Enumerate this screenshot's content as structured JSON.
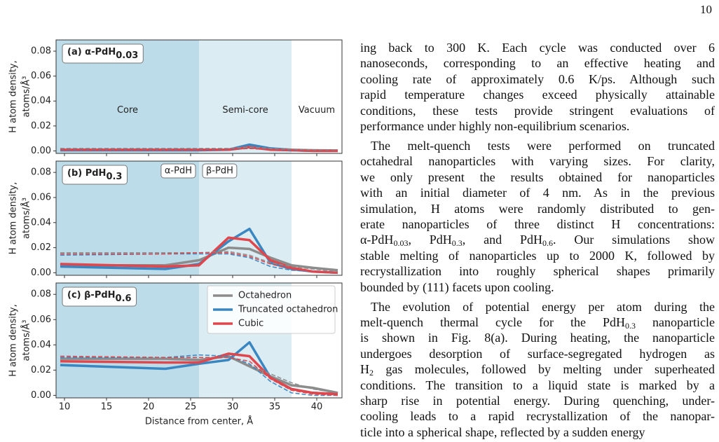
{
  "page_number": "10",
  "chart_data": [
    {
      "type": "line",
      "title": "(a) α-PdH",
      "title_sub": "0.03",
      "x": [
        9.5,
        22,
        26,
        29.5,
        32,
        34.5,
        37,
        39.5,
        42.5
      ],
      "xlim": [
        9,
        43
      ],
      "xticks": [
        10,
        15,
        20,
        25,
        30,
        35,
        40
      ],
      "xtick_labels": false,
      "ylim": [
        -0.002,
        0.089
      ],
      "yticks": [
        {
          "value": 0,
          "label": "0.00"
        },
        0.02,
        0.04,
        0.06,
        0.08
      ],
      "ylabel": [
        "H atom density,",
        "atoms/Å³"
      ],
      "regions": [
        {
          "from": 9,
          "to": 26,
          "color": "#bcdce9",
          "label": "Core"
        },
        {
          "from": 26,
          "to": 37,
          "color": "#dbedf3",
          "label": "Semi-core"
        },
        {
          "from": 37,
          "to": 43,
          "color": "#ffffff",
          "label": "Vacuum"
        }
      ],
      "region_label_style": "centered",
      "series": [
        {
          "color": "#8c8c8c",
          "values": [
            0.001,
            0.001,
            0.001,
            0.001,
            0.003,
            0.002,
            0.001,
            0.0005,
            0.0003
          ]
        },
        {
          "color": "#3a86c0",
          "values": [
            0.0005,
            0.0005,
            0.0005,
            0.001,
            0.005,
            0.002,
            0.0005,
            0,
            0
          ]
        },
        {
          "color": "#e0474c",
          "values": [
            0.001,
            0.001,
            0.001,
            0.001,
            0.003,
            0.001,
            0.0005,
            0,
            0
          ]
        },
        {
          "color": "#8c8c8c",
          "dashed": true,
          "values": [
            0.002,
            0.002,
            0.002,
            0.002,
            0.003,
            0.002,
            0.001,
            0.0005,
            0.0003
          ]
        },
        {
          "color": "#3a86c0",
          "dashed": true,
          "values": [
            0.001,
            0.001,
            0.001,
            0.001,
            0.002,
            0.001,
            0,
            0,
            0
          ]
        },
        {
          "color": "#e0474c",
          "dashed": true,
          "values": [
            0.0015,
            0.0015,
            0.0015,
            0.0015,
            0.002,
            0.001,
            0.0005,
            0,
            0
          ]
        }
      ]
    },
    {
      "type": "line",
      "title": "(b) PdH",
      "title_sub": "0.3",
      "x": [
        9.5,
        22,
        26,
        29.5,
        32,
        34.5,
        37,
        39.5,
        42.5
      ],
      "xlim": [
        9,
        43
      ],
      "xticks": [
        10,
        15,
        20,
        25,
        30,
        35,
        40
      ],
      "xtick_labels": false,
      "ylim": [
        -0.002,
        0.089
      ],
      "yticks": [
        {
          "value": 0,
          "label": "0.00"
        },
        0.02,
        0.04,
        0.06,
        0.08
      ],
      "ylabel": [
        "H atom density,",
        "atoms/Å³"
      ],
      "regions": [
        {
          "from": 9,
          "to": 26,
          "color": "#bcdce9",
          "label": "α-PdH"
        },
        {
          "from": 26,
          "to": 37,
          "color": "#dbedf3",
          "label": "β-PdH"
        },
        {
          "from": 37,
          "to": 43,
          "color": "#ffffff"
        }
      ],
      "region_label_style": "boxed",
      "series": [
        {
          "color": "#8c8c8c",
          "values": [
            0.006,
            0.006,
            0.01,
            0.02,
            0.019,
            0.012,
            0.006,
            0.004,
            0.002
          ]
        },
        {
          "color": "#3a86c0",
          "values": [
            0.005,
            0.003,
            0.007,
            0.025,
            0.035,
            0.008,
            0.003,
            0.001,
            0
          ]
        },
        {
          "color": "#e0474c",
          "values": [
            0.007,
            0.005,
            0.006,
            0.028,
            0.026,
            0.01,
            0.004,
            0.001,
            0
          ]
        },
        {
          "color": "#8c8c8c",
          "dashed": true,
          "values": [
            0.016,
            0.016,
            0.016,
            0.017,
            0.014,
            0.008,
            0.005,
            0.003,
            0.001
          ]
        },
        {
          "color": "#3a86c0",
          "dashed": true,
          "values": [
            0.014,
            0.015,
            0.015,
            0.015,
            0.012,
            0.005,
            0.002,
            0.001,
            0
          ]
        },
        {
          "color": "#e0474c",
          "dashed": true,
          "values": [
            0.015,
            0.015,
            0.016,
            0.016,
            0.013,
            0.007,
            0.003,
            0.001,
            0
          ]
        }
      ]
    },
    {
      "type": "line",
      "title": "(c) β-PdH",
      "title_sub": "0.6",
      "x": [
        9.5,
        22,
        26,
        29.5,
        32,
        34.5,
        37,
        39.5,
        42.5
      ],
      "xlim": [
        9,
        43
      ],
      "xticks": [
        10,
        15,
        20,
        25,
        30,
        35,
        40
      ],
      "xtick_labels": true,
      "xlabel": "Distance from center, Å",
      "ylim": [
        -0.002,
        0.089
      ],
      "yticks": [
        {
          "value": 0,
          "label": "0.00"
        },
        0.02,
        0.04,
        0.06,
        0.08
      ],
      "ylabel": [
        "H atom density,",
        "atoms/Å³"
      ],
      "regions": [
        {
          "from": 9,
          "to": 26,
          "color": "#bcdce9"
        },
        {
          "from": 26,
          "to": 37,
          "color": "#dbedf3"
        },
        {
          "from": 37,
          "to": 43,
          "color": "#ffffff"
        }
      ],
      "legend": "upper right",
      "series": [
        {
          "name": "Octahedron",
          "color": "#8c8c8c",
          "values": [
            0.029,
            0.029,
            0.028,
            0.031,
            0.023,
            0.015,
            0.008,
            0.006,
            0.002
          ]
        },
        {
          "name": "Truncated octahedron",
          "color": "#3a86c0",
          "values": [
            0.024,
            0.021,
            0.025,
            0.028,
            0.042,
            0.014,
            0.005,
            0.002,
            0.001
          ]
        },
        {
          "name": "Cubic",
          "color": "#e0474c",
          "values": [
            0.027,
            0.026,
            0.026,
            0.033,
            0.031,
            0.014,
            0.005,
            0.002,
            0.001
          ]
        },
        {
          "color": "#8c8c8c",
          "dashed": true,
          "values": [
            0.03,
            0.03,
            0.03,
            0.03,
            0.024,
            0.017,
            0.01,
            0.005,
            0.002
          ]
        },
        {
          "color": "#3a86c0",
          "dashed": true,
          "values": [
            0.03,
            0.03,
            0.032,
            0.031,
            0.025,
            0.011,
            0.002,
            0,
            0
          ]
        },
        {
          "color": "#e0474c",
          "dashed": true,
          "values": [
            0.031,
            0.03,
            0.03,
            0.03,
            0.027,
            0.013,
            0.004,
            0.001,
            0
          ]
        }
      ]
    }
  ],
  "text": {
    "paragraphs": [
      {
        "lines": [
          [
            "ing back to 300 K. Each cycle was conducted over 6"
          ],
          [
            "nanoseconds, corresponding to an effective heating and"
          ],
          [
            "cooling rate of approximately 0.6 K/ps. Although such"
          ],
          [
            "rapid temperature changes exceed physically attainable"
          ],
          [
            "conditions, these tests provide stringent evaluations of"
          ],
          [
            "performance under highly non-equilibrium scenarios."
          ]
        ]
      },
      {
        "lines": [
          [
            "The melt-quench tests were performed on truncated"
          ],
          [
            "octahedral nanoparticles with varying sizes. For clarity,"
          ],
          [
            "we only present the results obtained for nanoparticles"
          ],
          [
            "with an initial diameter of 4 nm.  As in the previous"
          ],
          [
            "simulation, H atoms were randomly distributed to gen-"
          ],
          [
            "erate nanoparticles of three distinct H concentrations:"
          ],
          [
            "α-PdH",
            {
              "sub": "0.03"
            },
            ", PdH",
            {
              "sub": "0.3"
            },
            ", and PdH",
            {
              "sub": "0.6"
            },
            ". Our simulations show"
          ],
          [
            "stable melting of nanoparticles up to 2000 K, followed by"
          ],
          [
            "recrystallization into roughly spherical shapes primarily"
          ],
          [
            "bounded by (111) facets upon cooling."
          ]
        ]
      },
      {
        "lines": [
          [
            "The evolution of potential energy per atom during the"
          ],
          [
            "melt-quench thermal cycle for the PdH",
            {
              "sub": "0.3"
            },
            " nanoparticle"
          ],
          [
            "is shown in Fig. 8(a). During heating, the nanoparticle"
          ],
          [
            "undergoes desorption of surface-segregated hydrogen as"
          ],
          [
            "H",
            {
              "sub": "2"
            },
            " gas molecules, followed by melting under superheated"
          ],
          [
            "conditions. The transition to a liquid state is marked by a"
          ],
          [
            "sharp rise in potential energy. During quenching, under-"
          ],
          [
            "cooling leads to a rapid recrystallization of the nanopar-"
          ],
          [
            "ticle into a spherical shape, reflected by a sudden energy"
          ]
        ]
      }
    ]
  }
}
